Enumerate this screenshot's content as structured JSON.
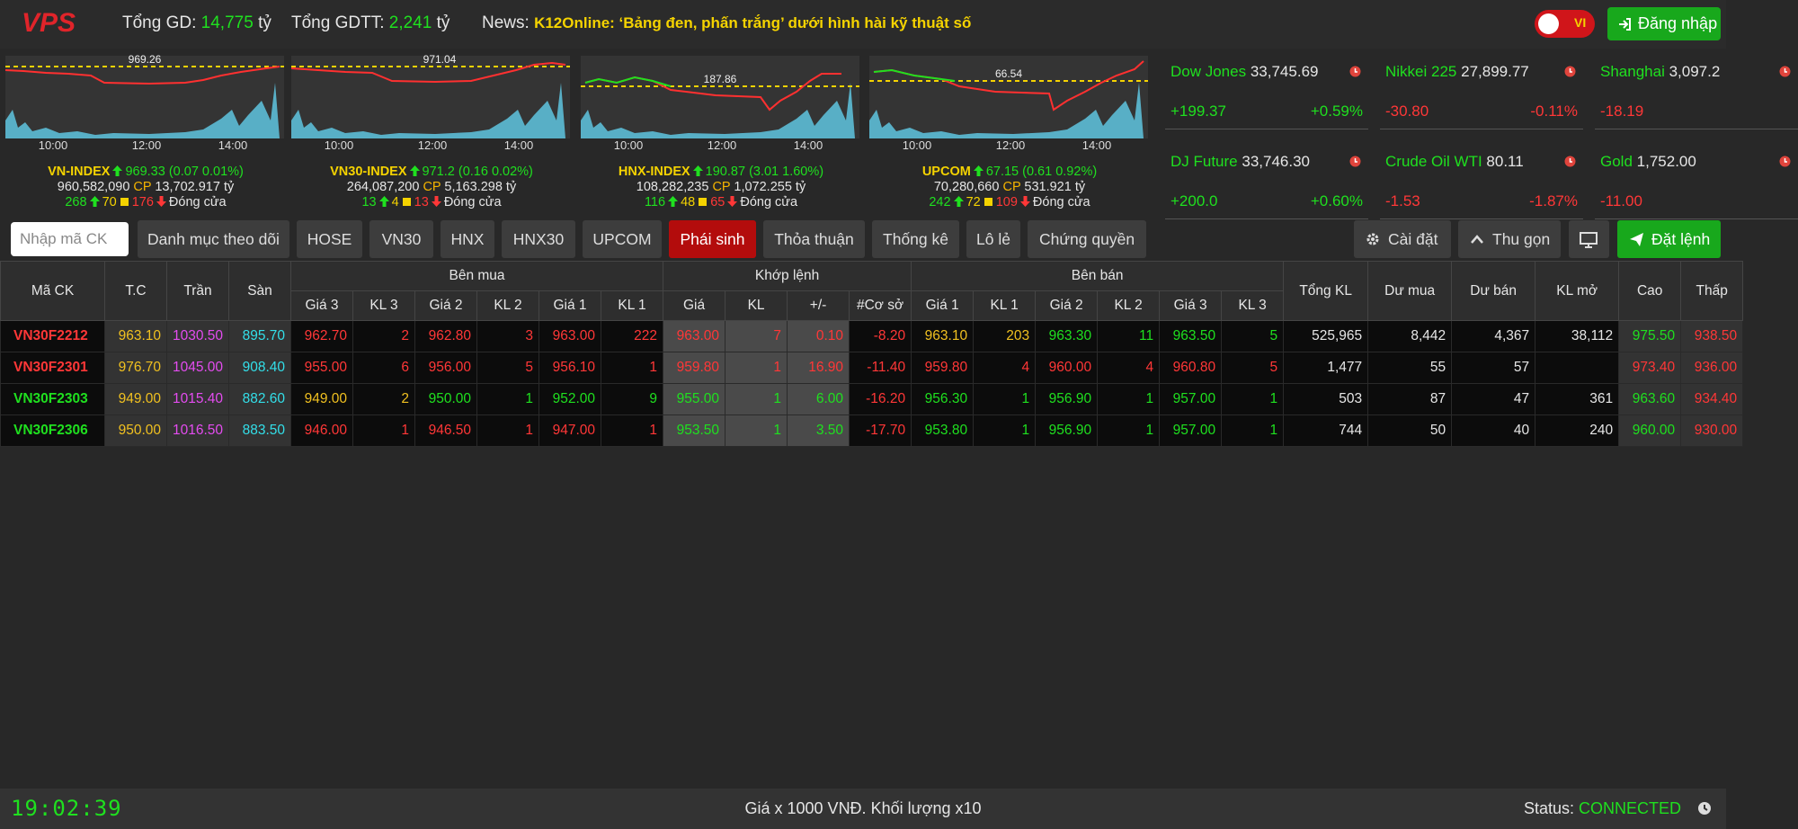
{
  "header": {
    "logo": "VPS",
    "total_gd_label": "Tổng GD:",
    "total_gd": "14,775",
    "total_gdtt_label": "Tổng GDTT:",
    "total_gdtt": "2,241",
    "unit": "tỷ",
    "news_label": "News:",
    "news": "K12Online: ‘Bảng đen, phấn trắng’ dưới hình hài kỹ thuật số",
    "language": "VI",
    "login": "Đăng nhập"
  },
  "chart_times": [
    "10:00",
    "12:00",
    "14:00"
  ],
  "index_units": {
    "volume": "CP",
    "value": "tỷ"
  },
  "indices": [
    {
      "name": "VN-INDEX",
      "ref_label": "969.26",
      "value": "969.33",
      "change": "(0.07  0.01%)",
      "volume": "960,582,090",
      "value_traded": "13,702.917",
      "up": "268",
      "ref": "70",
      "down": "176",
      "status": "Đóng cửa"
    },
    {
      "name": "VN30-INDEX",
      "ref_label": "971.04",
      "value": "971.2",
      "change": "(0.16  0.02%)",
      "volume": "264,087,200",
      "value_traded": "5,163.298",
      "up": "13",
      "ref": "4",
      "down": "13",
      "status": "Đóng cửa"
    },
    {
      "name": "HNX-INDEX",
      "ref_label": "187.86",
      "value": "190.87",
      "change": "(3.01  1.60%)",
      "volume": "108,282,235",
      "value_traded": "1,072.255",
      "up": "116",
      "ref": "48",
      "down": "65",
      "status": "Đóng cửa"
    },
    {
      "name": "UPCOM",
      "ref_label": "66.54",
      "value": "67.15",
      "change": "(0.61  0.92%)",
      "volume": "70,280,660",
      "value_traded": "531.921",
      "up": "242",
      "ref": "72",
      "down": "109",
      "status": "Đóng cửa"
    }
  ],
  "world": [
    {
      "name": "Dow Jones",
      "value": "33,745.69",
      "change": "+199.37",
      "pct": "+0.59%",
      "color": "#1fe01f"
    },
    {
      "name": "Nikkei 225",
      "value": "27,899.77",
      "change": "-30.80",
      "pct": "-0.11%",
      "color": "#ff3737"
    },
    {
      "name": "Shanghai",
      "value": "3,097.2",
      "change": "-18.19",
      "color": "#ff3737"
    },
    {
      "name": "DJ Future",
      "value": "33,746.30",
      "change": "+200.0",
      "pct": "+0.60%",
      "color": "#1fe01f"
    },
    {
      "name": "Crude Oil WTI",
      "value": "80.11",
      "change": "-1.53",
      "pct": "-1.87%",
      "color": "#ff3737"
    },
    {
      "name": "Gold",
      "value": "1,752.00",
      "change": "-11.00",
      "color": "#ff3737"
    }
  ],
  "toolbar": {
    "search_placeholder": "Nhập mã CK",
    "tabs": [
      "Danh mục theo dõi",
      "HOSE",
      "VN30",
      "HNX",
      "HNX30",
      "UPCOM",
      "Phái sinh",
      "Thỏa thuận",
      "Thống kê",
      "Lô lẻ",
      "Chứng quyền"
    ],
    "active_tab": 6,
    "settings": "Cài đặt",
    "collapse": "Thu gọn",
    "order": "Đặt lệnh"
  },
  "table": {
    "columns": [
      {
        "label": "Mã CK"
      },
      {
        "label": "T.C"
      },
      {
        "label": "Trần"
      },
      {
        "label": "Sàn"
      },
      {
        "label": "Bên mua",
        "sub": [
          "Giá 3",
          "KL 3",
          "Giá 2",
          "KL 2",
          "Giá 1",
          "KL 1"
        ]
      },
      {
        "label": "Khớp lệnh",
        "sub": [
          "Giá",
          "KL",
          "+/-",
          "#Cơ sở"
        ]
      },
      {
        "label": "Bên bán",
        "sub": [
          "Giá 1",
          "KL 1",
          "Giá 2",
          "KL 2",
          "Giá 3",
          "KL 3"
        ]
      },
      {
        "label": "Tổng KL"
      },
      {
        "label": "Dư mua"
      },
      {
        "label": "Dư bán"
      },
      {
        "label": "KL mở"
      },
      {
        "label": "Cao"
      },
      {
        "label": "Thấp"
      }
    ],
    "rows": [
      {
        "cells": [
          "VN30F2212",
          "963.10",
          "1030.50",
          "895.70",
          "962.70",
          "2",
          "962.80",
          "3",
          "963.00",
          "222",
          "963.00",
          "7",
          "0.10",
          "-8.20",
          "963.10",
          "203",
          "963.30",
          "11",
          "963.50",
          "5",
          "525,965",
          "8,442",
          "4,367",
          "38,112",
          "975.50",
          "938.50"
        ],
        "colors": [
          "#ff3737",
          "#f0c020",
          "#e44cf0",
          "#33dfe9",
          "#ff3737",
          "#ff3737",
          "#ff3737",
          "#ff3737",
          "#ff3737",
          "#ff3737",
          "#ff3737",
          "#ff3737",
          "#ff3737",
          "#ff3737",
          "#f0c020",
          "#f0c020",
          "#1fe01f",
          "#1fe01f",
          "#1fe01f",
          "#1fe01f",
          "#e6e6e6",
          "#e6e6e6",
          "#e6e6e6",
          "#e6e6e6",
          "#1fe01f",
          "#ff3737"
        ]
      },
      {
        "cells": [
          "VN30F2301",
          "976.70",
          "1045.00",
          "908.40",
          "955.00",
          "6",
          "956.00",
          "5",
          "956.10",
          "1",
          "959.80",
          "1",
          "16.90",
          "-11.40",
          "959.80",
          "4",
          "960.00",
          "4",
          "960.80",
          "5",
          "1,477",
          "55",
          "57",
          null,
          "973.40",
          "936.00"
        ],
        "colors": [
          "#ff3737",
          "#f0c020",
          "#e44cf0",
          "#33dfe9",
          "#ff3737",
          "#ff3737",
          "#ff3737",
          "#ff3737",
          "#ff3737",
          "#ff3737",
          "#ff3737",
          "#ff3737",
          "#ff3737",
          "#ff3737",
          "#ff3737",
          "#ff3737",
          "#ff3737",
          "#ff3737",
          "#ff3737",
          "#ff3737",
          "#e6e6e6",
          "#e6e6e6",
          "#e6e6e6",
          "#e6e6e6",
          "#ff3737",
          "#ff3737"
        ]
      },
      {
        "cells": [
          "VN30F2303",
          "949.00",
          "1015.40",
          "882.60",
          "949.00",
          "2",
          "950.00",
          "1",
          "952.00",
          "9",
          "955.00",
          "1",
          "6.00",
          "-16.20",
          "956.30",
          "1",
          "956.90",
          "1",
          "957.00",
          "1",
          "503",
          "87",
          "47",
          "361",
          "963.60",
          "934.40"
        ],
        "colors": [
          "#1fe01f",
          "#f0c020",
          "#e44cf0",
          "#33dfe9",
          "#f0c020",
          "#f0c020",
          "#1fe01f",
          "#1fe01f",
          "#1fe01f",
          "#1fe01f",
          "#1fe01f",
          "#1fe01f",
          "#1fe01f",
          "#ff3737",
          "#1fe01f",
          "#1fe01f",
          "#1fe01f",
          "#1fe01f",
          "#1fe01f",
          "#1fe01f",
          "#e6e6e6",
          "#e6e6e6",
          "#e6e6e6",
          "#e6e6e6",
          "#1fe01f",
          "#ff3737"
        ]
      },
      {
        "cells": [
          "VN30F2306",
          "950.00",
          "1016.50",
          "883.50",
          "946.00",
          "1",
          "946.50",
          "1",
          "947.00",
          "1",
          "953.50",
          "1",
          "3.50",
          "-17.70",
          "953.80",
          "1",
          "956.90",
          "1",
          "957.00",
          "1",
          "744",
          "50",
          "40",
          "240",
          "960.00",
          "930.00"
        ],
        "colors": [
          "#1fe01f",
          "#f0c020",
          "#e44cf0",
          "#33dfe9",
          "#ff3737",
          "#ff3737",
          "#ff3737",
          "#ff3737",
          "#ff3737",
          "#ff3737",
          "#1fe01f",
          "#1fe01f",
          "#1fe01f",
          "#ff3737",
          "#1fe01f",
          "#1fe01f",
          "#1fe01f",
          "#1fe01f",
          "#1fe01f",
          "#1fe01f",
          "#e6e6e6",
          "#e6e6e6",
          "#e6e6e6",
          "#e6e6e6",
          "#1fe01f",
          "#ff3737"
        ]
      }
    ]
  },
  "footer": {
    "clock": "19:02:39",
    "note": "Giá x 1000 VNĐ. Khối lượng x10",
    "status_label": "Status:",
    "status": "CONNECTED"
  }
}
